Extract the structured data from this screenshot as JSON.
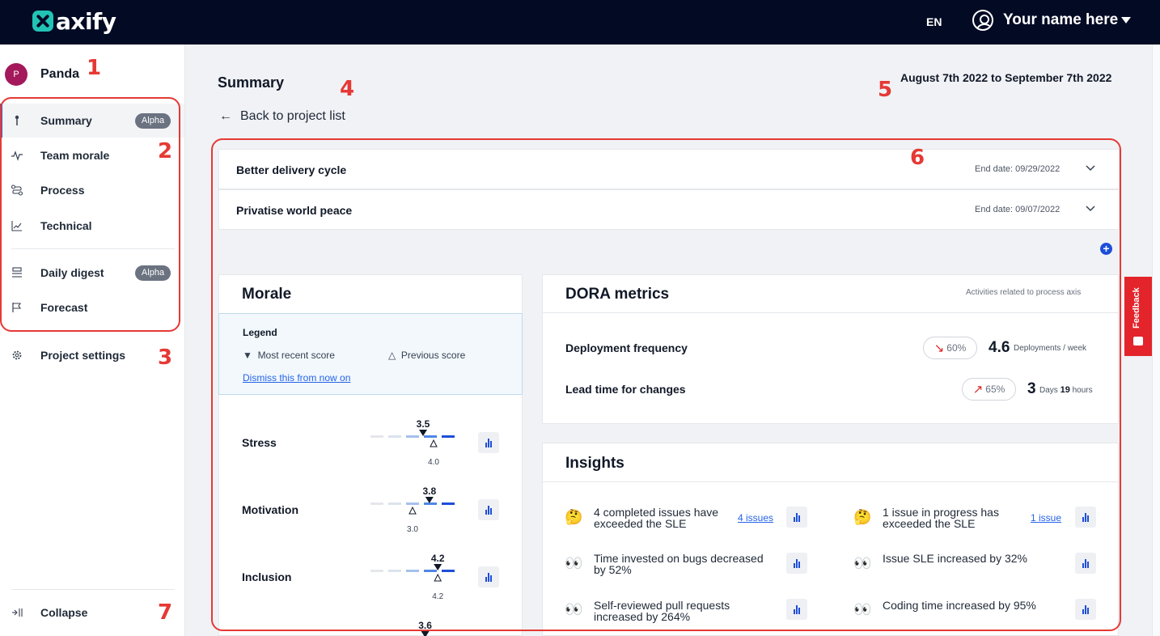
{
  "topbar": {
    "logo_text": "axify",
    "lang": "EN",
    "user_name": "Your name here",
    "icons": {
      "logo": "axify-logo-icon",
      "user": "user-circle-icon",
      "caret": "caret-down-icon"
    }
  },
  "sidebar": {
    "project_initial": "P",
    "project_name": "Panda",
    "items": [
      {
        "label": "Summary",
        "badge": "Alpha",
        "icon": "pin-icon",
        "active": true
      },
      {
        "label": "Team morale",
        "icon": "pulse-icon"
      },
      {
        "label": "Process",
        "icon": "process-icon"
      },
      {
        "label": "Technical",
        "icon": "trend-chart-icon"
      },
      {
        "label": "Daily digest",
        "badge": "Alpha",
        "icon": "digest-icon"
      },
      {
        "label": "Forecast",
        "icon": "flag-icon"
      }
    ],
    "settings_label": "Project settings",
    "collapse_label": "Collapse"
  },
  "annotations": [
    "1",
    "2",
    "3",
    "4",
    "5",
    "6",
    "7"
  ],
  "main": {
    "title": "Summary",
    "back_label": "Back to project list",
    "date_range": "August 7th 2022 to September 7th 2022",
    "goals": [
      {
        "title": "Better delivery cycle",
        "end": "End date: 09/29/2022"
      },
      {
        "title": "Privatise world peace",
        "end": "End date: 09/07/2022"
      }
    ]
  },
  "morale": {
    "title": "Morale",
    "legend_title": "Legend",
    "legend_recent": "Most recent score",
    "legend_previous": "Previous score",
    "dismiss": "Dismiss this from now on",
    "rows": [
      {
        "label": "Stress",
        "recent": "3.5",
        "previous": "4.0"
      },
      {
        "label": "Motivation",
        "recent": "3.8",
        "previous": "3.0"
      },
      {
        "label": "Inclusion",
        "recent": "4.2",
        "previous": "4.2"
      },
      {
        "label": "",
        "recent": "3.6",
        "previous": ""
      }
    ]
  },
  "dora": {
    "title": "DORA metrics",
    "subtitle": "Activities related to process axis",
    "metrics": [
      {
        "label": "Deployment frequency",
        "change": "60%",
        "trend": "down",
        "value": "4.6",
        "unit": "Deployments / week"
      },
      {
        "label": "Lead time for changes",
        "change": "65%",
        "trend": "up",
        "value": "3",
        "unit_a": "Days",
        "value_b": "19",
        "unit_b": "hours"
      }
    ]
  },
  "insights": {
    "title": "Insights",
    "items": [
      {
        "emoji": "🤔",
        "text": "4 completed issues have exceeded the SLE",
        "link": "4 issues"
      },
      {
        "emoji": "🤔",
        "text": "1 issue in progress has exceeded the SLE",
        "link": "1 issue"
      },
      {
        "emoji": "👀",
        "text": "Time invested on bugs decreased by 52%"
      },
      {
        "emoji": "👀",
        "text": "Issue SLE increased by 32%"
      },
      {
        "emoji": "👀",
        "text": "Self-reviewed pull requests increased by 264%"
      },
      {
        "emoji": "👀",
        "text": "Coding time increased by 95%"
      }
    ]
  },
  "feedback_label": "Feedback"
}
